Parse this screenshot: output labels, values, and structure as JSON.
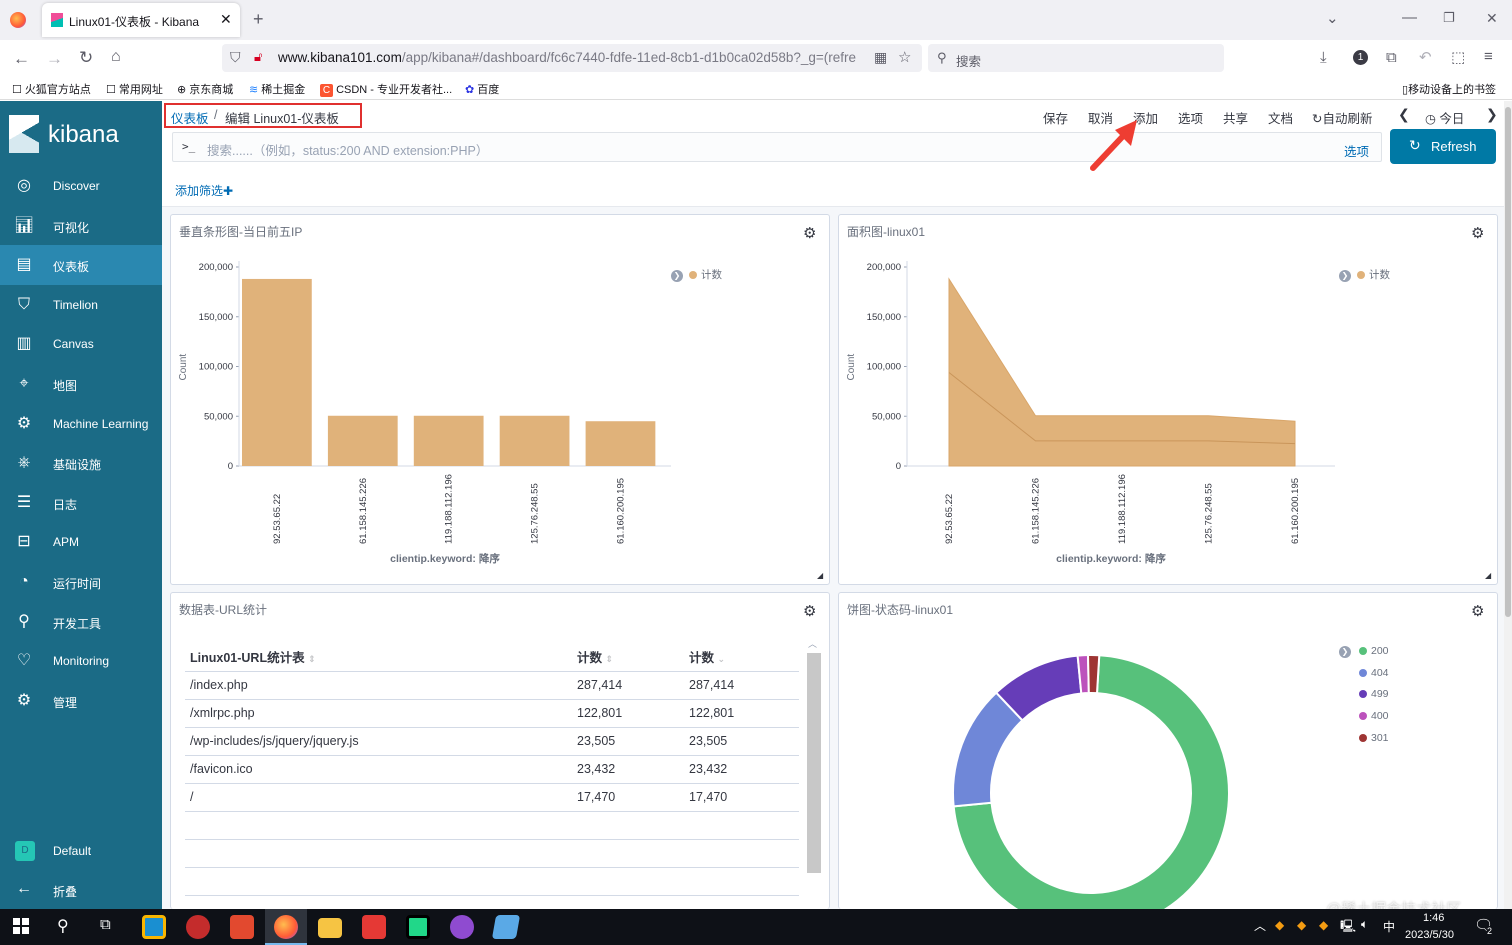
{
  "browser": {
    "tab_title": "Linux01-仪表板 - Kibana",
    "url_host": "www.kibana101.com",
    "url_path": "/app/kibana#/dashboard/fc6c7440-fdfe-11ed-8cb1-d1b0ca02d58b?_g=(refre",
    "search_placeholder": "搜索",
    "bookmarks": [
      "火狐官方站点",
      "常用网址",
      "京东商城",
      "稀土掘金",
      "CSDN - 专业开发者社...",
      "百度"
    ],
    "mobile_bookmarks": "移动设备上的书签"
  },
  "sidebar": {
    "logo": "kibana",
    "items": [
      {
        "label": "Discover",
        "icon": "compass-icon"
      },
      {
        "label": "可视化",
        "icon": "visualize-icon"
      },
      {
        "label": "仪表板",
        "icon": "dashboard-icon"
      },
      {
        "label": "Timelion",
        "icon": "timelion-icon"
      },
      {
        "label": "Canvas",
        "icon": "canvas-icon"
      },
      {
        "label": "地图",
        "icon": "map-icon"
      },
      {
        "label": "Machine Learning",
        "icon": "ml-icon"
      },
      {
        "label": "基础设施",
        "icon": "infra-icon"
      },
      {
        "label": "日志",
        "icon": "logs-icon"
      },
      {
        "label": "APM",
        "icon": "apm-icon"
      },
      {
        "label": "运行时间",
        "icon": "uptime-icon"
      },
      {
        "label": "开发工具",
        "icon": "devtools-icon"
      },
      {
        "label": "Monitoring",
        "icon": "monitoring-icon"
      },
      {
        "label": "管理",
        "icon": "gear-icon"
      }
    ],
    "space_badge": "D",
    "space_label": "Default",
    "collapse_label": "折叠"
  },
  "header": {
    "breadcrumb_root": "仪表板",
    "breadcrumb_sep": "/",
    "breadcrumb_current": "编辑 Linux01-仪表板",
    "actions": [
      "保存",
      "取消",
      "添加",
      "选项",
      "共享",
      "文档"
    ],
    "auto_refresh": "自动刷新",
    "time_label": "今日",
    "query_prompt": ">_",
    "query_placeholder": "搜索......（例如，status:200 AND extension:PHP）",
    "options_label": "选项",
    "refresh_label": "Refresh",
    "add_filter": "添加筛选"
  },
  "panels": {
    "bar": {
      "title": "垂直条形图-当日前五IP",
      "legend": "计数",
      "ylabel": "Count",
      "xlabel": "clientip.keyword: 降序"
    },
    "area": {
      "title": "面积图-linux01",
      "legend": "计数",
      "ylabel": "Count",
      "xlabel": "clientip.keyword: 降序"
    },
    "table": {
      "title": "数据表-URL统计",
      "headers": [
        "Linux01-URL统计表",
        "计数",
        "计数"
      ],
      "rows": [
        [
          "/index.php",
          "287,414",
          "287,414"
        ],
        [
          "/xmlrpc.php",
          "122,801",
          "122,801"
        ],
        [
          "/wp-includes/js/jquery/jquery.js",
          "23,505",
          "23,505"
        ],
        [
          "/favicon.ico",
          "23,432",
          "23,432"
        ],
        [
          "/",
          "17,470",
          "17,470"
        ]
      ]
    },
    "pie": {
      "title": "饼图-状态码-linux01"
    }
  },
  "chart_data": [
    {
      "type": "bar",
      "title": "垂直条形图-当日前五IP",
      "categories": [
        "92.53.65.22",
        "61.158.145.226",
        "119.188.112.196",
        "125.76.248.55",
        "61.160.200.195"
      ],
      "values": [
        188000,
        50500,
        50500,
        50500,
        45000
      ],
      "ylabel": "Count",
      "xlabel": "clientip.keyword: 降序",
      "yticks": [
        "200,000",
        "150,000",
        "100,000",
        "50,000",
        "0"
      ],
      "ylim": [
        0,
        200000
      ],
      "legend": [
        "计数"
      ]
    },
    {
      "type": "area",
      "title": "面积图-linux01",
      "categories": [
        "92.53.65.22",
        "61.158.145.226",
        "119.188.112.196",
        "125.76.248.55",
        "61.160.200.195"
      ],
      "series": [
        {
          "name": "计数",
          "values": [
            188000,
            50500,
            50500,
            50500,
            45000
          ]
        },
        {
          "name": "计数",
          "values": [
            94000,
            25250,
            25250,
            25250,
            22500
          ]
        }
      ],
      "ylabel": "Count",
      "xlabel": "clientip.keyword: 降序",
      "yticks": [
        "200,000",
        "150,000",
        "100,000",
        "50,000",
        "0"
      ],
      "ylim": [
        0,
        200000
      ]
    },
    {
      "type": "pie",
      "title": "饼图-状态码-linux01",
      "labels": [
        "200",
        "404",
        "499",
        "400",
        "301"
      ],
      "values": [
        72.5,
        14.5,
        10.5,
        1.2,
        1.3
      ],
      "colors": [
        "#57c17b",
        "#6f87d8",
        "#663db8",
        "#bc52bc",
        "#9e3533"
      ]
    }
  ],
  "taskbar": {
    "time": "1:46",
    "date": "2023/5/30",
    "ime": "中",
    "notify_count": "2"
  },
  "watermark": "@稀土掘金技术社区",
  "colors": {
    "sidebar": "#1b6b86",
    "active": "#2a88b0",
    "bar": "#e0b27a",
    "accent": "#0079a5",
    "link": "#006bb4"
  }
}
